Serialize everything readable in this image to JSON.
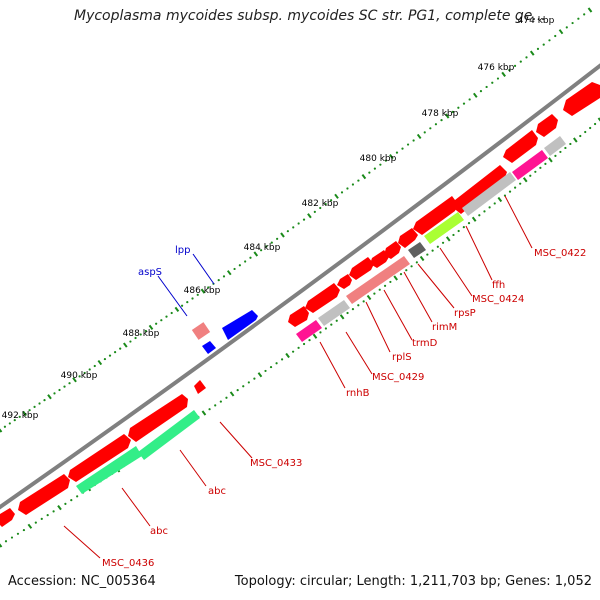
{
  "title": "Mycoplasma mycoides subsp. mycoides SC str. PG1, complete ge...",
  "footer": {
    "accession": "Accession: NC_005364",
    "summary": "Topology: circular; Length: 1,211,703 bp; Genes: 1,052"
  },
  "colors": {
    "cds": "#ff0000",
    "cds_other_strand": "#0000ff",
    "label_red": "#cc0000",
    "label_blue": "#0000cc",
    "ticks": "#1a8a1a",
    "backbone": "#808080",
    "green_feature": "#33ee88",
    "lime_feature": "#aaff33",
    "magenta_feature": "#ff1493",
    "gray_feature": "#c0c0c0",
    "dark_gray_feature": "#606060",
    "pink_feature": "#f08080"
  },
  "ruler": {
    "kbp_labels": [
      "474 kbp",
      "476 kbp",
      "478 kbp",
      "480 kbp",
      "482 kbp",
      "484 kbp",
      "486 kbp",
      "488 kbp",
      "490 kbp",
      "492 kbp"
    ]
  },
  "gene_labels": {
    "outer": [
      "lpp",
      "aspS"
    ],
    "inner": [
      "MSC_0422",
      "ffh",
      "MSC_0424",
      "rpsP",
      "rimM",
      "trmD",
      "rplS",
      "MSC_0429",
      "rnhB",
      "MSC_0433",
      "abc",
      "abc",
      "MSC_0436"
    ]
  }
}
